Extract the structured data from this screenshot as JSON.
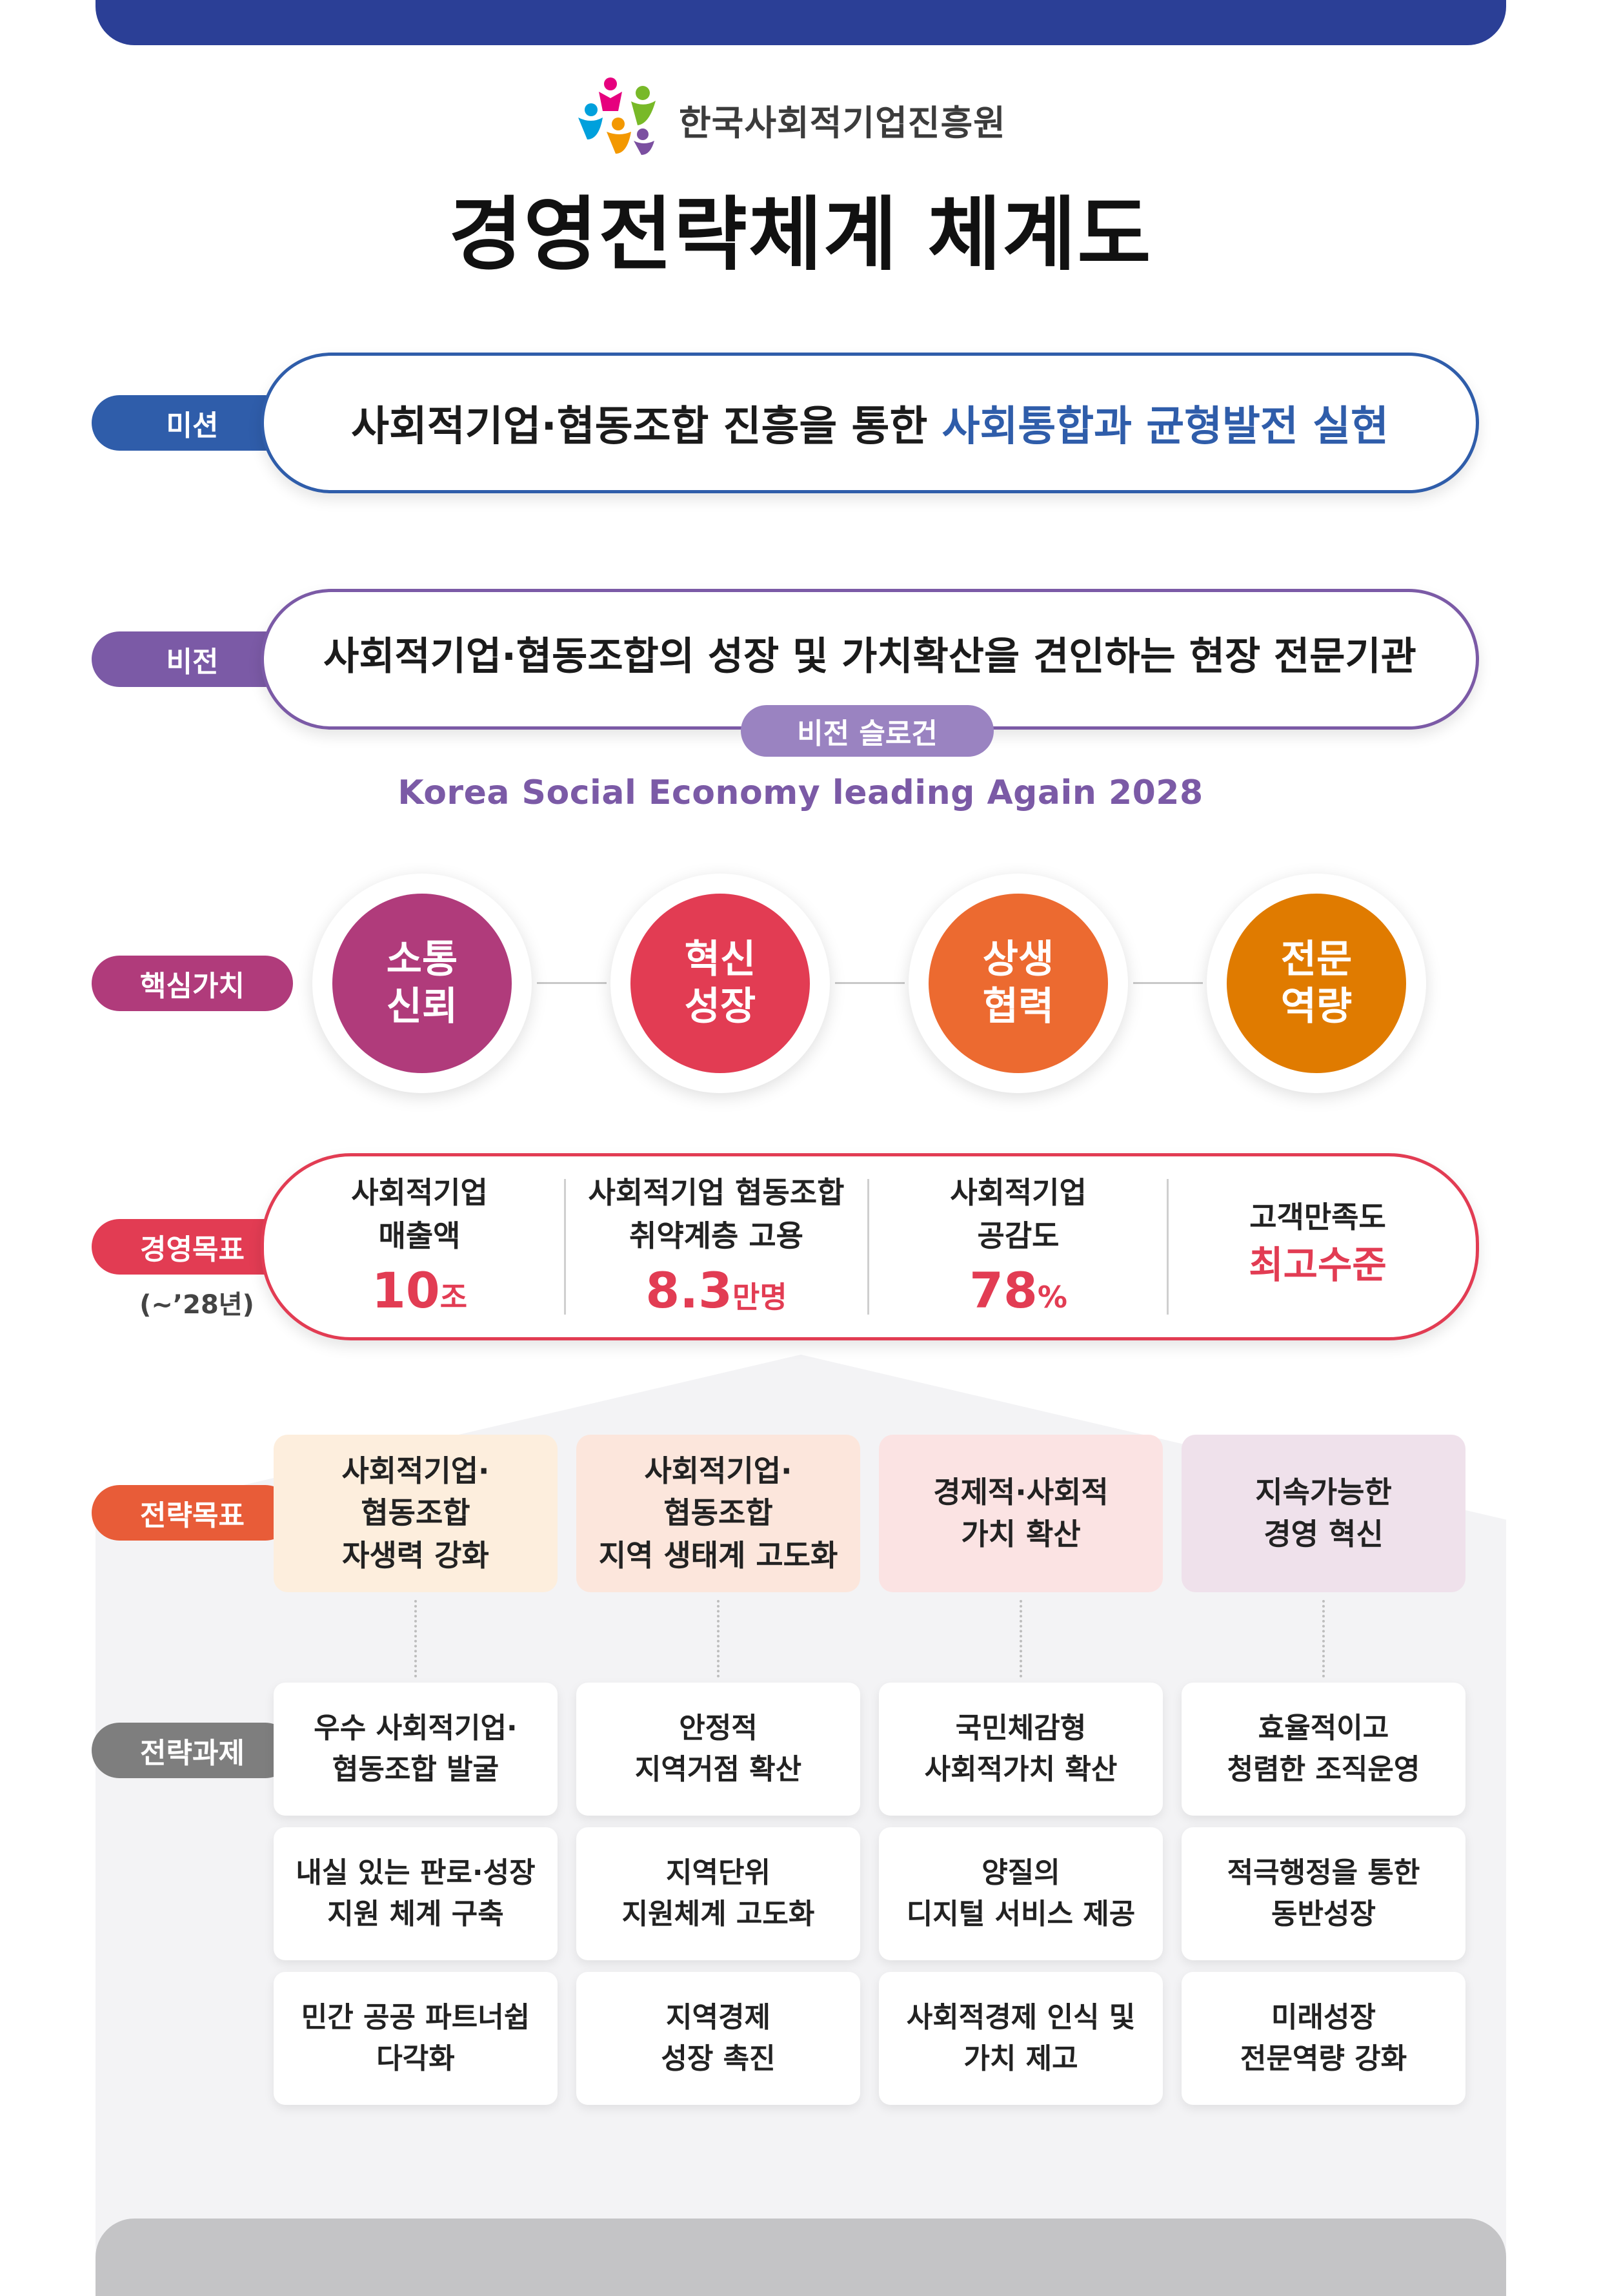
{
  "header": {
    "org_name": "한국사회적기업진흥원",
    "title": "경영전략체계 체계도"
  },
  "labels": {
    "mission": "미션",
    "vision": "비전",
    "core_values": "핵심가치",
    "mgmt_goals": "경영목표",
    "mgmt_goals_period": "(~’28년)",
    "strategic_goals": "전략목표",
    "strategic_tasks": "전략과제"
  },
  "colors": {
    "mission": "#2f5daa",
    "vision": "#7b5aa6",
    "core_values": "#b03b7b",
    "mgmt_goals": "#e23c53",
    "strategic_goals": "#e85c38",
    "strategic_tasks": "#7e7e7e"
  },
  "mission": {
    "text_plain": "사회적기업·협동조합 진흥을 통한 ",
    "text_highlight": "사회통합과 균형발전 실현"
  },
  "vision": {
    "text": "사회적기업·협동조합의 성장 및 가치확산을 견인하는 현장 전문기관",
    "slogan_label": "비전 슬로건",
    "slogan": "Korea Social Economy leading Again 2028"
  },
  "core_values": [
    {
      "line1": "소통",
      "line2": "신뢰",
      "color": "#b03b7b"
    },
    {
      "line1": "혁신",
      "line2": "성장",
      "color": "#e23c53"
    },
    {
      "line1": "상생",
      "line2": "협력",
      "color": "#ec6a30"
    },
    {
      "line1": "전문",
      "line2": "역량",
      "color": "#e07b00"
    }
  ],
  "mgmt_goals": [
    {
      "line1": "사회적기업",
      "line2": "매출액",
      "value": "10",
      "unit": "조"
    },
    {
      "line1": "사회적기업 협동조합",
      "line2": "취약계층 고용",
      "value": "8.3",
      "unit": "만명"
    },
    {
      "line1": "사회적기업",
      "line2": "공감도",
      "value": "78",
      "unit": "%"
    },
    {
      "line1": "고객만족도",
      "line2": "",
      "value": "최고수준",
      "unit": ""
    }
  ],
  "strategic_goals": [
    {
      "line1": "사회적기업·",
      "line2": "협동조합",
      "line3": "자생력 강화",
      "bg": "#fdeedd"
    },
    {
      "line1": "사회적기업·",
      "line2": "협동조합",
      "line3": "지역 생태계 고도화",
      "bg": "#fce6dc"
    },
    {
      "line1": "경제적·사회적",
      "line2": "가치 확산",
      "line3": "",
      "bg": "#fbe3e3"
    },
    {
      "line1": "지속가능한",
      "line2": "경영 혁신",
      "line3": "",
      "bg": "#efe1eb"
    }
  ],
  "strategic_tasks": [
    [
      {
        "line1": "우수 사회적기업·",
        "line2": "협동조합 발굴"
      },
      {
        "line1": "내실 있는 판로·성장",
        "line2": "지원 체계 구축"
      },
      {
        "line1": "민간 공공 파트너쉽",
        "line2": "다각화"
      }
    ],
    [
      {
        "line1": "안정적",
        "line2": "지역거점 확산"
      },
      {
        "line1": "지역단위",
        "line2": "지원체계 고도화"
      },
      {
        "line1": "지역경제",
        "line2": "성장 촉진"
      }
    ],
    [
      {
        "line1": "국민체감형",
        "line2": "사회적가치 확산"
      },
      {
        "line1": "양질의",
        "line2": "디지털 서비스 제공"
      },
      {
        "line1": "사회적경제 인식 및",
        "line2": "가치 제고"
      }
    ],
    [
      {
        "line1": "효율적이고",
        "line2": "청렴한 조직운영"
      },
      {
        "line1": "적극행정을 통한",
        "line2": "동반성장"
      },
      {
        "line1": "미래성장",
        "line2": "전문역량 강화"
      }
    ]
  ]
}
